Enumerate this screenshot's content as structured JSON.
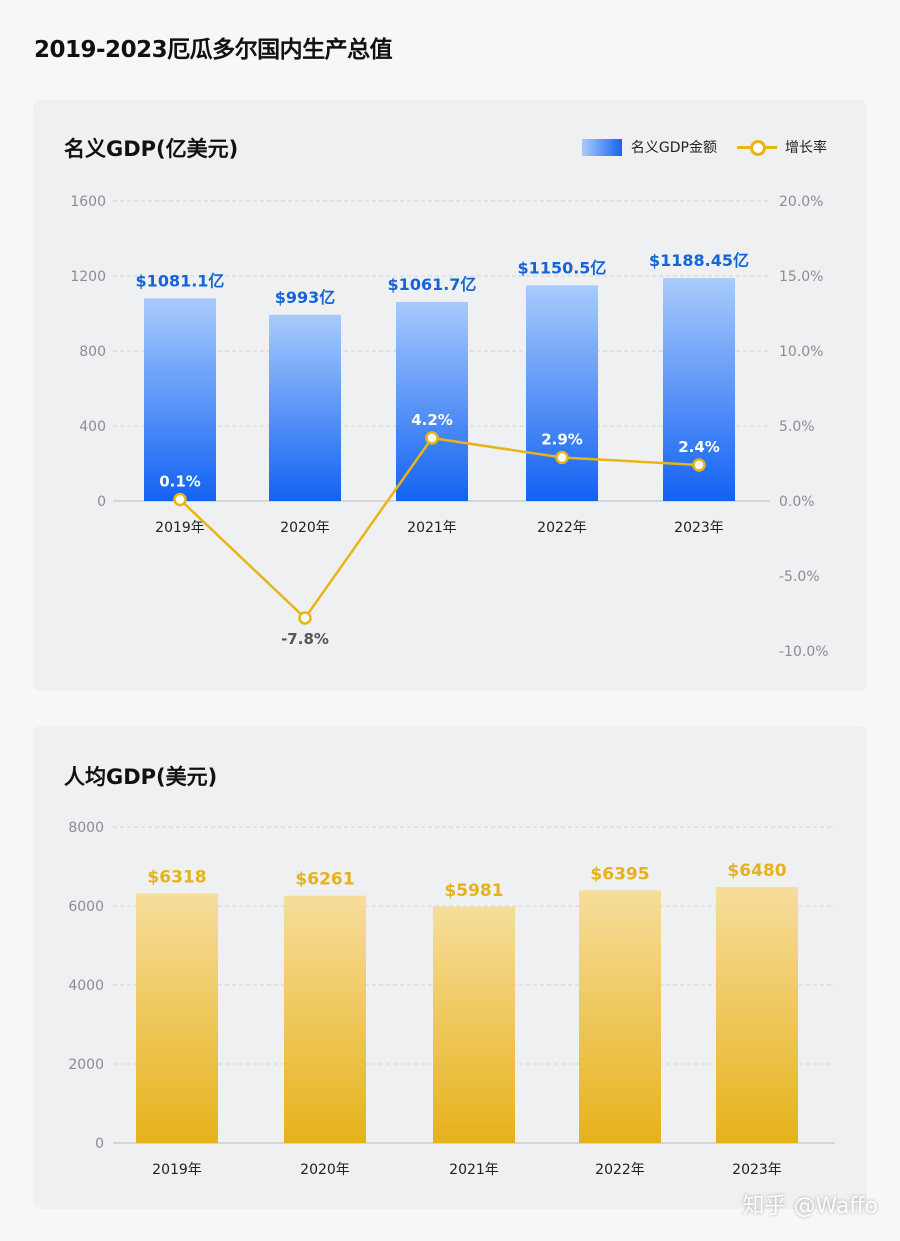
{
  "page_title": "2019-2023厄瓜多尔国内生产总值",
  "watermark": "知乎 @Waffo",
  "chart_data": [
    {
      "type": "bar+line",
      "title": "名义GDP(亿美元)",
      "categories": [
        "2019年",
        "2020年",
        "2021年",
        "2022年",
        "2023年"
      ],
      "legend": {
        "bar": "名义GDP金额",
        "line": "增长率",
        "placement": "top-right"
      },
      "series": [
        {
          "name": "名义GDP金额",
          "values": [
            1081.1,
            993,
            1061.7,
            1150.5,
            1188.45
          ],
          "labels": [
            "$1081.1亿",
            "$993亿",
            "$1061.7亿",
            "$1150.5亿",
            "$1188.45亿"
          ],
          "color": "#1765f0"
        },
        {
          "name": "增长率",
          "values": [
            0.1,
            -7.8,
            4.2,
            2.9,
            2.4
          ],
          "labels": [
            "0.1%",
            "-7.8%",
            "4.2%",
            "2.9%",
            "2.4%"
          ],
          "color": "#e8b416"
        }
      ],
      "ylim": [
        0,
        1600
      ],
      "yticks": [
        "0",
        "400",
        "800",
        "1200",
        "1600"
      ],
      "y2lim": [
        -10,
        20
      ],
      "y2ticks": [
        "-10.0%",
        "-5.0%",
        "0.0%",
        "5.0%",
        "10.0%",
        "15.0%",
        "20.0%"
      ],
      "grid": true
    },
    {
      "type": "bar",
      "title": "人均GDP(美元)",
      "categories": [
        "2019年",
        "2020年",
        "2021年",
        "2022年",
        "2023年"
      ],
      "values": [
        6318,
        6261,
        5981,
        6395,
        6480
      ],
      "labels": [
        "$6318",
        "$6261",
        "$5981",
        "$6395",
        "$6480"
      ],
      "color": "#e8b416",
      "ylim": [
        0,
        8000
      ],
      "yticks": [
        "0",
        "2000",
        "4000",
        "6000",
        "8000"
      ],
      "grid": true
    }
  ]
}
